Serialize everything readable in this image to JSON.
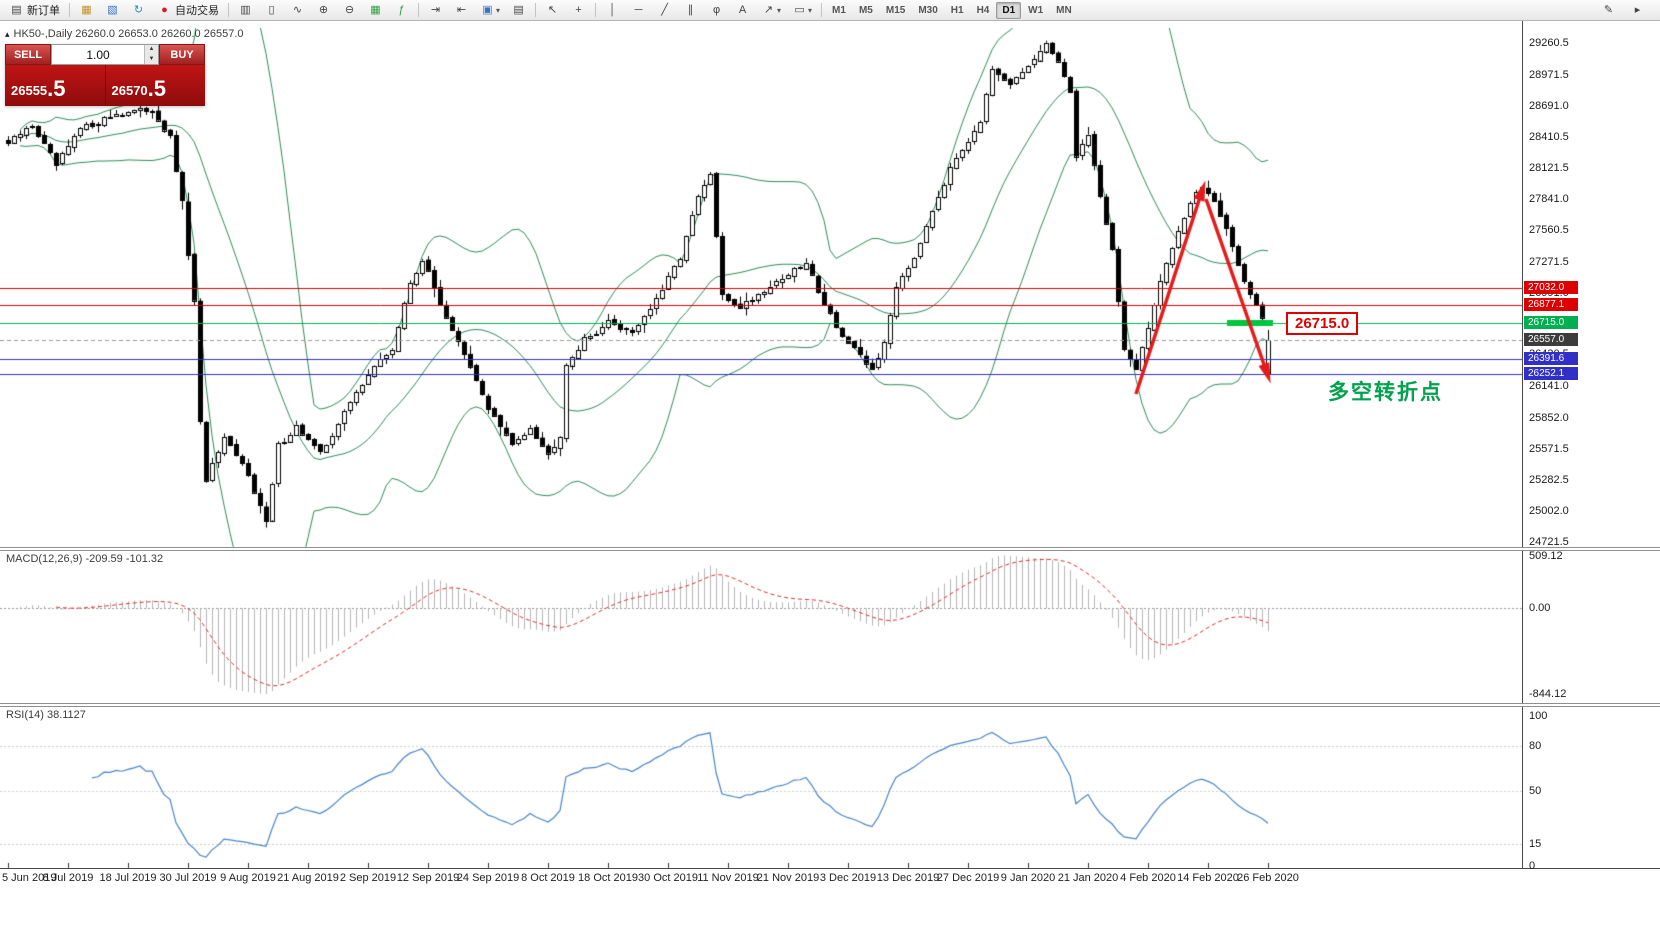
{
  "toolbar": {
    "new_order_label": "新订单",
    "auto_trading_label": "自动交易",
    "caret": "▾",
    "timeframes": [
      "M1",
      "M5",
      "M15",
      "M30",
      "H1",
      "H4",
      "D1",
      "W1",
      "MN"
    ],
    "active_timeframe": "D1",
    "icons": [
      {
        "name": "new-order-icon",
        "glyph": "▤"
      },
      {
        "name": "new-chart-icon",
        "glyph": "▦"
      },
      {
        "name": "profiles-icon",
        "glyph": "▧"
      },
      {
        "name": "refresh-icon",
        "glyph": "↻"
      },
      {
        "name": "auto-trading-icon",
        "glyph": "●"
      },
      {
        "name": "bar-chart-icon",
        "glyph": "▥"
      },
      {
        "name": "candlestick-icon",
        "glyph": "▯"
      },
      {
        "name": "line-chart-icon",
        "glyph": "∿"
      },
      {
        "name": "zoom-in-icon",
        "glyph": "⊕"
      },
      {
        "name": "zoom-out-icon",
        "glyph": "⊖"
      },
      {
        "name": "tile-windows-icon",
        "glyph": "▦"
      },
      {
        "name": "indicators-icon",
        "glyph": "ƒ"
      },
      {
        "name": "auto-scroll-icon",
        "glyph": "⇥"
      },
      {
        "name": "chart-shift-icon",
        "glyph": "⇤"
      },
      {
        "name": "templates-icon",
        "glyph": "▣"
      },
      {
        "name": "data-window-icon",
        "glyph": "▤"
      },
      {
        "name": "cursor-icon",
        "glyph": "↖"
      },
      {
        "name": "crosshair-icon",
        "glyph": "+"
      },
      {
        "name": "vertical-line-icon",
        "glyph": "│"
      },
      {
        "name": "horizontal-line-icon",
        "glyph": "─"
      },
      {
        "name": "trendline-icon",
        "glyph": "╱"
      },
      {
        "name": "channel-icon",
        "glyph": "∥"
      },
      {
        "name": "fibonacci-icon",
        "glyph": "φ"
      },
      {
        "name": "text-icon",
        "glyph": "A"
      },
      {
        "name": "arrow-tool-icon",
        "glyph": "↗"
      },
      {
        "name": "shapes-icon",
        "glyph": "▭"
      },
      {
        "name": "edit-icon",
        "glyph": "✎"
      },
      {
        "name": "pointer-mode-icon",
        "glyph": "▸"
      }
    ]
  },
  "symbol_header": "HK50-,Daily  26260.0 26653.0 26260.0 26557.0",
  "one_click": {
    "collapse_glyph": "▴",
    "sell_label": "SELL",
    "buy_label": "BUY",
    "volume": "1.00",
    "spin_up": "▲",
    "spin_down": "▼",
    "sell_price": "26555",
    "sell_price_big": ".5",
    "buy_price": "26570",
    "buy_price_big": ".5"
  },
  "price_axis_labels": [
    "29260.5",
    "28971.5",
    "28691.0",
    "28410.5",
    "28121.5",
    "27841.0",
    "27560.5",
    "27271.5",
    "26991.0",
    "26710.5",
    "26430.5",
    "26141.0",
    "25852.0",
    "25571.5",
    "25282.5",
    "25002.0",
    "24721.5"
  ],
  "price_tags": [
    {
      "text": "27032.0",
      "price": 27032.0,
      "bg": "#dd0000"
    },
    {
      "text": "26877.1",
      "price": 26877.1,
      "bg": "#dd0000"
    },
    {
      "text": "26715.0",
      "price": 26715.0,
      "bg": "#00b050"
    },
    {
      "text": "26557.0",
      "price": 26557.0,
      "bg": "#3c3c3c"
    },
    {
      "text": "26391.6",
      "price": 26391.6,
      "bg": "#3030c8"
    },
    {
      "text": "26252.1",
      "price": 26252.1,
      "bg": "#3030c8"
    }
  ],
  "hlines": [
    {
      "price": 27032.0,
      "color": "#dd0000",
      "style": "solid"
    },
    {
      "price": 26877.1,
      "color": "#dd0000",
      "style": "solid"
    },
    {
      "price": 26715.0,
      "color": "#00b050",
      "style": "solid"
    },
    {
      "price": 26557.0,
      "color": "#9a9a9a",
      "style": "dashed"
    },
    {
      "price": 26391.6,
      "color": "#3030c8",
      "style": "solid"
    },
    {
      "price": 26252.1,
      "color": "#3030c8",
      "style": "solid"
    }
  ],
  "annotations": {
    "price_label": "26715.0",
    "turning_point": "多空转折点"
  },
  "macd_panel": {
    "label": "MACD(12,26,9) -209.59 -101.32",
    "scale": [
      {
        "text": "509.12",
        "value": 509.12
      },
      {
        "text": "0.00",
        "value": 0
      },
      {
        "text": "-844.12",
        "value": -844.12
      }
    ]
  },
  "rsi_panel": {
    "label": "RSI(14) 38.1127",
    "scale": [
      {
        "text": "100",
        "value": 100
      },
      {
        "text": "80",
        "value": 80
      },
      {
        "text": "50",
        "value": 50
      },
      {
        "text": "15",
        "value": 15
      },
      {
        "text": "0",
        "value": 0
      }
    ]
  },
  "date_axis": [
    "5 Jun 2019",
    "8 Jul 2019",
    "18 Jul 2019",
    "30 Jul 2019",
    "9 Aug 2019",
    "21 Aug 2019",
    "2 Sep 2019",
    "12 Sep 2019",
    "24 Sep 2019",
    "8 Oct 2019",
    "18 Oct 2019",
    "30 Oct 2019",
    "11 Nov 2019",
    "21 Nov 2019",
    "3 Dec 2019",
    "13 Dec 2019",
    "27 Dec 2019",
    "9 Jan 2020",
    "21 Jan 2020",
    "4 Feb 2020",
    "14 Feb 2020",
    "26 Feb 2020"
  ],
  "chart_data": {
    "type": "candlestick",
    "symbol": "HK50-",
    "timeframe": "Daily",
    "last_bar": {
      "open": 26260.0,
      "high": 26653.0,
      "low": 26260.0,
      "close": 26557.0
    },
    "bid": 26555.5,
    "ask": 26570.5,
    "y_range_main": [
      24721.5,
      29260.5
    ],
    "levels": [
      27032.0,
      26877.1,
      26715.0,
      26557.0,
      26391.6,
      26252.1
    ],
    "indicators": [
      {
        "name": "Bollinger Bands",
        "color": "#2e8b57"
      },
      {
        "name": "MACD(12,26,9)",
        "macd": -209.59,
        "signal": -101.32,
        "scale": [
          509.12,
          0.0,
          -844.12
        ]
      },
      {
        "name": "RSI(14)",
        "value": 38.1127,
        "levels": [
          80,
          50,
          15
        ]
      }
    ]
  }
}
